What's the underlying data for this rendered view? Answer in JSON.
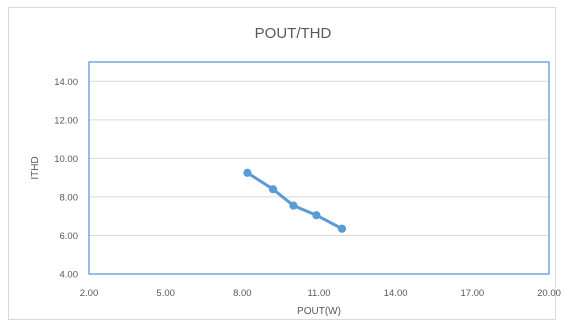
{
  "chart_data": {
    "type": "line",
    "title": "POUT/THD",
    "xlabel": "POUT(W)",
    "ylabel": "ITHD",
    "xlim": [
      2.0,
      20.0
    ],
    "ylim": [
      4.0,
      15.0
    ],
    "x_ticks": [
      "2.00",
      "5.00",
      "8.00",
      "11.00",
      "14.00",
      "17.00",
      "20.00"
    ],
    "y_ticks": [
      "4.00",
      "6.00",
      "8.00",
      "10.00",
      "12.00",
      "14.00"
    ],
    "grid": true,
    "legend": "none",
    "series_color": "#5b9bd5",
    "series": [
      {
        "points": [
          {
            "x": 8.2,
            "y": 9.25
          },
          {
            "x": 9.2,
            "y": 8.4
          },
          {
            "x": 10.0,
            "y": 7.55
          },
          {
            "x": 10.9,
            "y": 7.05
          },
          {
            "x": 11.9,
            "y": 6.35
          }
        ]
      }
    ]
  }
}
